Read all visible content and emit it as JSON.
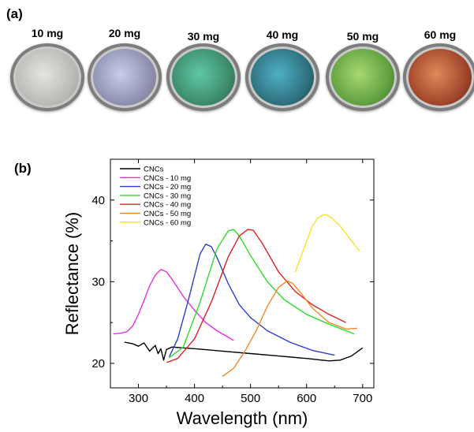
{
  "panel_a_label": "(a)",
  "panel_b_label": "(b)",
  "dishes": [
    {
      "label": "10 mg",
      "colors": [
        "#e4e4e2",
        "#b8bab4",
        "#8f918b"
      ]
    },
    {
      "label": "20 mg",
      "colors": [
        "#c9cde8",
        "#8e8fb0",
        "#6f6a5a"
      ]
    },
    {
      "label": "30 mg",
      "colors": [
        "#5fc7a6",
        "#3c8a6a",
        "#2a3a2e"
      ]
    },
    {
      "label": "40 mg",
      "colors": [
        "#4fb0c6",
        "#2e6f7c",
        "#14202a"
      ]
    },
    {
      "label": "50 mg",
      "colors": [
        "#a8d870",
        "#5fa040",
        "#33452a"
      ]
    },
    {
      "label": "60 mg",
      "colors": [
        "#e08a5a",
        "#a0442a",
        "#2a1a14"
      ]
    }
  ],
  "chart_data": {
    "type": "line",
    "xlabel": "Wavelength (nm)",
    "ylabel": "Reflectance (%)",
    "xlim": [
      250,
      720
    ],
    "ylim": [
      17,
      45
    ],
    "xticks": [
      300,
      400,
      500,
      600,
      700
    ],
    "yticks": [
      20,
      30,
      40
    ],
    "legend_position": "top-left",
    "series": [
      {
        "name": "CNCs",
        "color": "#000000",
        "x": [
          275,
          290,
          300,
          310,
          320,
          330,
          335,
          340,
          345,
          350,
          360,
          380,
          400,
          450,
          500,
          550,
          600,
          640,
          660,
          680,
          700
        ],
        "y": [
          22.6,
          22.4,
          22.1,
          22.5,
          21.5,
          22.2,
          21.2,
          21.8,
          20.4,
          21.7,
          22.0,
          21.9,
          21.8,
          21.5,
          21.2,
          20.9,
          20.6,
          20.3,
          20.4,
          20.9,
          21.9
        ]
      },
      {
        "name": "CNCs - 10 mg",
        "color": "#e830e8",
        "x": [
          255,
          270,
          280,
          290,
          300,
          310,
          320,
          330,
          340,
          350,
          360,
          380,
          400,
          420,
          440,
          470
        ],
        "y": [
          23.6,
          23.7,
          23.9,
          24.6,
          26.0,
          27.7,
          29.5,
          30.8,
          31.5,
          31.2,
          30.3,
          28.2,
          26.5,
          25.0,
          24.0,
          22.8
        ]
      },
      {
        "name": "CNCs - 20 mg",
        "color": "#2f3fcc",
        "x": [
          355,
          370,
          390,
          410,
          420,
          430,
          440,
          460,
          480,
          500,
          530,
          570,
          610,
          650
        ],
        "y": [
          20.8,
          23.0,
          28.0,
          33.4,
          34.6,
          34.3,
          33.0,
          29.8,
          27.2,
          25.6,
          24.0,
          22.6,
          21.6,
          21.0
        ]
      },
      {
        "name": "CNCs - 30 mg",
        "color": "#2edc2e",
        "x": [
          355,
          380,
          410,
          440,
          460,
          470,
          480,
          500,
          530,
          560,
          600,
          640,
          685
        ],
        "y": [
          20.7,
          22.0,
          27.5,
          34.0,
          36.2,
          36.4,
          35.6,
          33.2,
          30.0,
          27.8,
          26.0,
          24.8,
          23.6
        ]
      },
      {
        "name": "CNCs - 40 mg",
        "color": "#e02020",
        "x": [
          350,
          370,
          400,
          430,
          460,
          480,
          495,
          505,
          520,
          550,
          580,
          610,
          640,
          670
        ],
        "y": [
          20.1,
          20.6,
          23.0,
          27.5,
          33.0,
          35.6,
          36.4,
          36.3,
          34.8,
          31.2,
          28.8,
          27.2,
          26.0,
          25.0
        ]
      },
      {
        "name": "CNCs - 50 mg",
        "color": "#f08a2a",
        "x": [
          450,
          470,
          490,
          510,
          530,
          550,
          565,
          575,
          590,
          610,
          640,
          670,
          690
        ],
        "y": [
          18.4,
          19.4,
          21.5,
          24.0,
          27.0,
          29.3,
          30.1,
          29.8,
          28.6,
          26.8,
          25.0,
          24.2,
          24.3
        ]
      },
      {
        "name": "CNCs - 60 mg",
        "color": "#f2e62a",
        "x": [
          580,
          595,
          610,
          620,
          630,
          635,
          645,
          660,
          680,
          695
        ],
        "y": [
          31.2,
          34.0,
          36.8,
          37.8,
          38.2,
          38.2,
          37.8,
          36.8,
          35.0,
          33.7
        ]
      }
    ]
  }
}
